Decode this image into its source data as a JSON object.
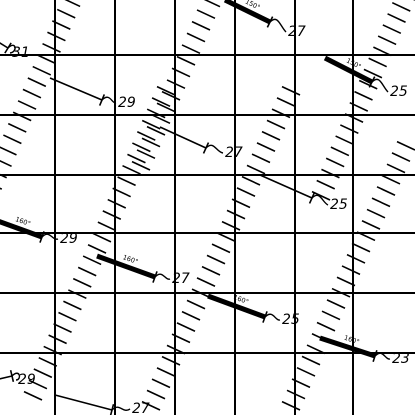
{
  "runway_markers": [
    {
      "label": "31",
      "heading": ""
    },
    {
      "label": "29",
      "heading": ""
    },
    {
      "label": "27",
      "heading": "150°"
    },
    {
      "label": "25",
      "heading": "150°"
    },
    {
      "label": "27",
      "heading": ""
    },
    {
      "label": "25",
      "heading": ""
    },
    {
      "label": "29",
      "heading": "160°"
    },
    {
      "label": "27",
      "heading": "160°"
    },
    {
      "label": "25",
      "heading": "160°"
    },
    {
      "label": "23",
      "heading": "160°"
    },
    {
      "label": "29",
      "heading": ""
    },
    {
      "label": "27",
      "heading": ""
    }
  ]
}
